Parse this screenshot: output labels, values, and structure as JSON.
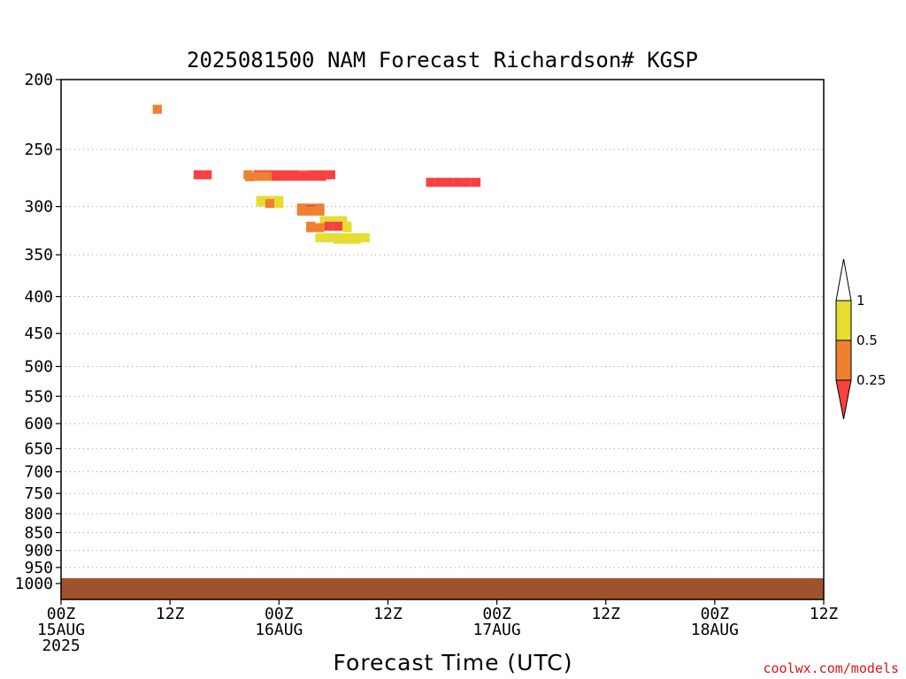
{
  "chart_data": {
    "type": "heatmap",
    "title": "2025081500 NAM Forecast Richardson# KGSP",
    "xlabel": "Forecast Time (UTC)",
    "ylabel": "",
    "x_range_hours": [
      0,
      84
    ],
    "x_ticks": [
      {
        "hour": 0,
        "lines": [
          "00Z",
          "15AUG",
          "2025"
        ]
      },
      {
        "hour": 12,
        "lines": [
          "12Z"
        ]
      },
      {
        "hour": 24,
        "lines": [
          "00Z",
          "16AUG"
        ]
      },
      {
        "hour": 36,
        "lines": [
          "12Z"
        ]
      },
      {
        "hour": 48,
        "lines": [
          "00Z",
          "17AUG"
        ]
      },
      {
        "hour": 60,
        "lines": [
          "12Z"
        ]
      },
      {
        "hour": 72,
        "lines": [
          "00Z",
          "18AUG"
        ]
      },
      {
        "hour": 84,
        "lines": [
          "12Z"
        ]
      }
    ],
    "y_ticks_hpa": [
      200,
      250,
      300,
      350,
      400,
      450,
      500,
      550,
      600,
      650,
      700,
      750,
      800,
      850,
      900,
      950,
      1000
    ],
    "y_range_hpa": [
      200,
      1000
    ],
    "y_scale": "log-pressure (inverted)",
    "grid": "dotted horizontal lines at pressure levels",
    "ground_color": "#a0522d",
    "colorbar": {
      "labels": [
        "1",
        "0.5",
        "0.25"
      ],
      "bins": [
        {
          "range": "<0.25",
          "color": "#f84040"
        },
        {
          "range": "0.25-0.5",
          "color": "#ee8030"
        },
        {
          "range": "0.5-1",
          "color": "#e6dc32"
        },
        {
          "range": ">1",
          "color": "#ffffff"
        }
      ]
    },
    "cell_size": {
      "hours": 1,
      "log_p_step": 0.0125
    },
    "cells": [
      [
        20.1,
        1.8,
        1
      ],
      [
        21.2,
        1.8,
        0
      ],
      [
        22.2,
        1.8,
        0
      ],
      [
        23.2,
        1.8,
        0
      ],
      [
        24.2,
        1.8,
        0
      ],
      [
        25.2,
        1.8,
        0
      ],
      [
        26.2,
        1.8,
        0
      ],
      [
        27.2,
        1.8,
        0
      ],
      [
        28.2,
        1.8,
        0
      ],
      [
        29.2,
        1.8,
        0
      ],
      [
        26.2,
        1.8,
        1
      ],
      [
        21.2,
        1.83,
        1
      ],
      [
        22.2,
        1.83,
        1
      ],
      [
        23.2,
        1.83,
        0
      ],
      [
        24.2,
        1.83,
        0
      ],
      [
        25.2,
        1.83,
        0
      ],
      [
        26.2,
        1.83,
        0
      ],
      [
        27.2,
        1.83,
        0
      ],
      [
        28.2,
        1.83,
        0
      ],
      [
        10.1,
        0.5,
        1
      ],
      [
        14.6,
        1.8,
        0
      ],
      [
        15.6,
        1.8,
        0
      ],
      [
        20.3,
        1.84,
        1
      ],
      [
        40.2,
        1.95,
        0
      ],
      [
        41.2,
        1.95,
        0
      ],
      [
        42.2,
        1.95,
        0
      ],
      [
        43.2,
        1.95,
        0
      ],
      [
        44.2,
        1.95,
        0
      ],
      [
        45.2,
        1.95,
        0
      ],
      [
        21.5,
        2.31,
        2
      ],
      [
        22.5,
        2.31,
        2
      ],
      [
        23.5,
        2.31,
        2
      ],
      [
        21.5,
        2.34,
        2
      ],
      [
        22.5,
        2.34,
        2
      ],
      [
        22.5,
        2.37,
        1
      ],
      [
        23.5,
        2.37,
        2
      ],
      [
        26,
        2.46,
        1
      ],
      [
        27,
        2.46,
        1
      ],
      [
        28,
        2.46,
        1
      ],
      [
        26,
        2.49,
        1
      ],
      [
        27,
        2.49,
        0
      ],
      [
        28,
        2.49,
        1
      ],
      [
        26,
        2.52,
        1
      ],
      [
        27,
        2.52,
        1
      ],
      [
        28,
        2.52,
        1
      ],
      [
        28.5,
        2.71,
        2
      ],
      [
        29.5,
        2.71,
        2
      ],
      [
        30.5,
        2.71,
        2
      ],
      [
        28.5,
        2.74,
        2
      ],
      [
        29.5,
        2.74,
        2
      ],
      [
        30.5,
        2.74,
        2
      ],
      [
        27,
        2.82,
        1
      ],
      [
        29,
        2.82,
        0
      ],
      [
        30,
        2.82,
        0
      ],
      [
        31,
        2.82,
        2
      ],
      [
        27,
        2.85,
        1
      ],
      [
        28,
        2.85,
        1
      ],
      [
        31,
        2.85,
        2
      ],
      [
        28,
        3.05,
        2
      ],
      [
        29,
        3.05,
        2
      ],
      [
        30,
        3.05,
        2
      ],
      [
        31,
        3.05,
        2
      ],
      [
        32,
        3.05,
        2
      ],
      [
        33,
        3.05,
        2
      ],
      [
        30,
        3.08,
        2
      ],
      [
        31,
        3.08,
        2
      ],
      [
        32,
        3.08,
        2
      ]
    ]
  },
  "credit": "coolwx.com/models"
}
